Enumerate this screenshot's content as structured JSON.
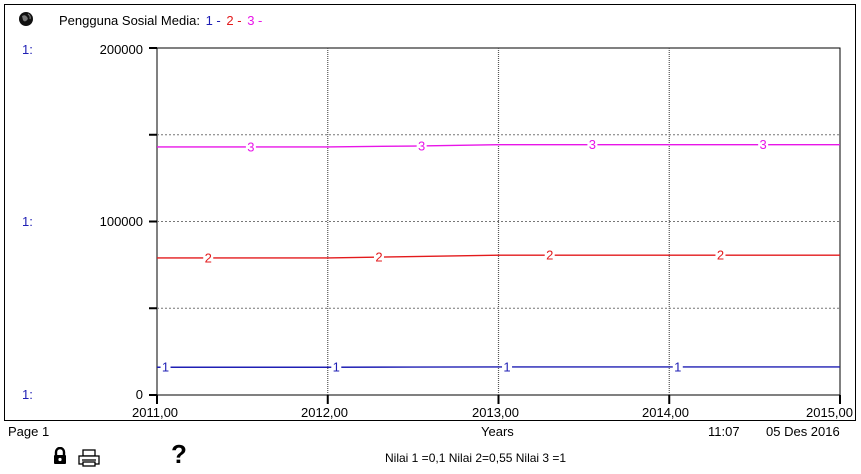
{
  "header": {
    "title": "Pengguna Sosial Media:",
    "legend": [
      {
        "label": "1",
        "sep": " -",
        "color": "#1f1fb4"
      },
      {
        "label": "2",
        "sep": " -",
        "color": "#e31a1c"
      },
      {
        "label": "3",
        "sep": " -",
        "color": "#e815e8"
      }
    ]
  },
  "axis_side_label": "1:",
  "footer": {
    "page": "Page 1",
    "time": "11:07",
    "date": "05 Des 2016",
    "note": "Nilai 1 =0,1 Nilai 2=0,55 Nilai 3 =1"
  },
  "icons": {
    "lock": "lock-icon",
    "print": "print-icon",
    "help": "help-icon",
    "globe": "globe-icon"
  },
  "chart_data": {
    "type": "line",
    "title": "Pengguna Sosial Media:",
    "xlabel": "Years",
    "ylabel": "",
    "x_ticks": [
      "2011,00",
      "2012,00",
      "2013,00",
      "2014,00",
      "2015,00"
    ],
    "y_ticks": [
      "0",
      "100000",
      "200000"
    ],
    "xlim": [
      2011,
      2015
    ],
    "ylim": [
      0,
      200000
    ],
    "grid": true,
    "x": [
      2011,
      2011.5,
      2012,
      2012.5,
      2013,
      2013.5,
      2014,
      2014.5,
      2015
    ],
    "series": [
      {
        "name": "1",
        "color": "#1f1fb4",
        "values": [
          16000,
          16000,
          16000,
          16100,
          16200,
          16200,
          16200,
          16200,
          16200
        ]
      },
      {
        "name": "2",
        "color": "#e31a1c",
        "values": [
          79000,
          79000,
          79000,
          79800,
          80600,
          80600,
          80600,
          80600,
          80600
        ]
      },
      {
        "name": "3",
        "color": "#e815e8",
        "values": [
          143000,
          143000,
          143000,
          143500,
          144300,
          144300,
          144300,
          144300,
          144300
        ]
      }
    ],
    "marker_x": {
      "1": [
        2011.05,
        2012.05,
        2013.05,
        2014.05
      ],
      "2": [
        2011.3,
        2012.3,
        2013.3,
        2014.3
      ],
      "3": [
        2011.55,
        2012.55,
        2013.55,
        2014.55
      ]
    }
  }
}
